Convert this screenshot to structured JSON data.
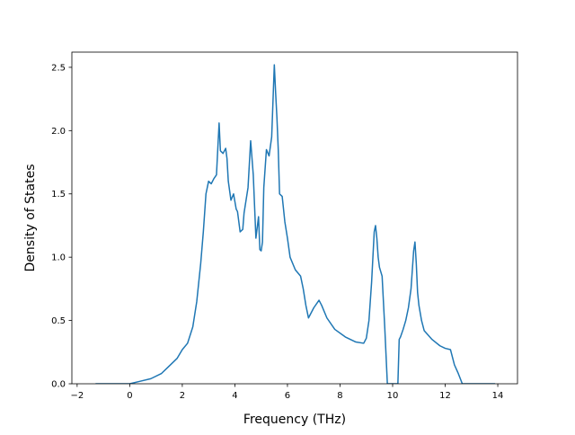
{
  "chart_data": {
    "type": "line",
    "title": "",
    "xlabel": "Frequency (THz)",
    "ylabel": "Density of States",
    "xlim": [
      -2.2,
      14.75
    ],
    "ylim": [
      0.0,
      2.62
    ],
    "xticks": [
      -2,
      0,
      2,
      4,
      6,
      8,
      10,
      12,
      14
    ],
    "yticks": [
      0.0,
      0.5,
      1.0,
      1.5,
      2.0,
      2.5
    ],
    "xtick_labels": [
      "−2",
      "0",
      "2",
      "4",
      "6",
      "8",
      "10",
      "12",
      "14"
    ],
    "ytick_labels": [
      "0.0",
      "0.5",
      "1.0",
      "1.5",
      "2.0",
      "2.5"
    ],
    "grid": false,
    "legend": "none",
    "series": [
      {
        "color": "#1f77b4",
        "x": [
          -1.3,
          -0.6,
          0.0,
          0.4,
          0.8,
          1.2,
          1.5,
          1.8,
          2.0,
          2.2,
          2.4,
          2.55,
          2.7,
          2.8,
          2.9,
          3.0,
          3.1,
          3.2,
          3.3,
          3.4,
          3.45,
          3.55,
          3.65,
          3.7,
          3.75,
          3.85,
          3.95,
          4.05,
          4.1,
          4.2,
          4.3,
          4.35,
          4.5,
          4.6,
          4.7,
          4.8,
          4.9,
          4.95,
          5.0,
          5.05,
          5.1,
          5.2,
          5.3,
          5.4,
          5.5,
          5.55,
          5.6,
          5.65,
          5.7,
          5.8,
          5.9,
          6.0,
          6.1,
          6.3,
          6.5,
          6.6,
          6.7,
          6.8,
          7.0,
          7.2,
          7.3,
          7.5,
          7.8,
          8.2,
          8.6,
          8.9,
          9.0,
          9.1,
          9.2,
          9.3,
          9.35,
          9.4,
          9.45,
          9.5,
          9.6,
          9.7,
          9.8,
          9.9,
          10.0,
          10.1,
          10.2,
          10.25,
          10.3,
          10.4,
          10.5,
          10.6,
          10.7,
          10.8,
          10.85,
          10.9,
          10.95,
          11.0,
          11.1,
          11.2,
          11.5,
          11.8,
          12.0,
          12.2,
          12.35,
          12.5,
          12.65,
          12.8,
          13.2,
          13.9
        ],
        "y": [
          0.0,
          0.0,
          0.0,
          0.02,
          0.04,
          0.08,
          0.14,
          0.2,
          0.27,
          0.32,
          0.45,
          0.65,
          0.95,
          1.2,
          1.5,
          1.6,
          1.58,
          1.62,
          1.65,
          2.06,
          1.84,
          1.82,
          1.86,
          1.78,
          1.6,
          1.45,
          1.5,
          1.38,
          1.36,
          1.2,
          1.22,
          1.35,
          1.55,
          1.92,
          1.65,
          1.15,
          1.32,
          1.06,
          1.05,
          1.12,
          1.55,
          1.85,
          1.8,
          1.95,
          2.52,
          2.3,
          2.1,
          1.85,
          1.5,
          1.48,
          1.28,
          1.15,
          1.0,
          0.9,
          0.85,
          0.75,
          0.62,
          0.52,
          0.6,
          0.66,
          0.62,
          0.52,
          0.43,
          0.37,
          0.33,
          0.32,
          0.36,
          0.5,
          0.8,
          1.2,
          1.25,
          1.15,
          1.0,
          0.92,
          0.85,
          0.45,
          0.0,
          0.0,
          0.0,
          0.0,
          0.0,
          0.35,
          0.37,
          0.43,
          0.5,
          0.6,
          0.75,
          1.05,
          1.12,
          0.95,
          0.72,
          0.62,
          0.5,
          0.42,
          0.35,
          0.3,
          0.28,
          0.27,
          0.15,
          0.08,
          0.0,
          0.0,
          0.0,
          0.0
        ]
      }
    ]
  }
}
